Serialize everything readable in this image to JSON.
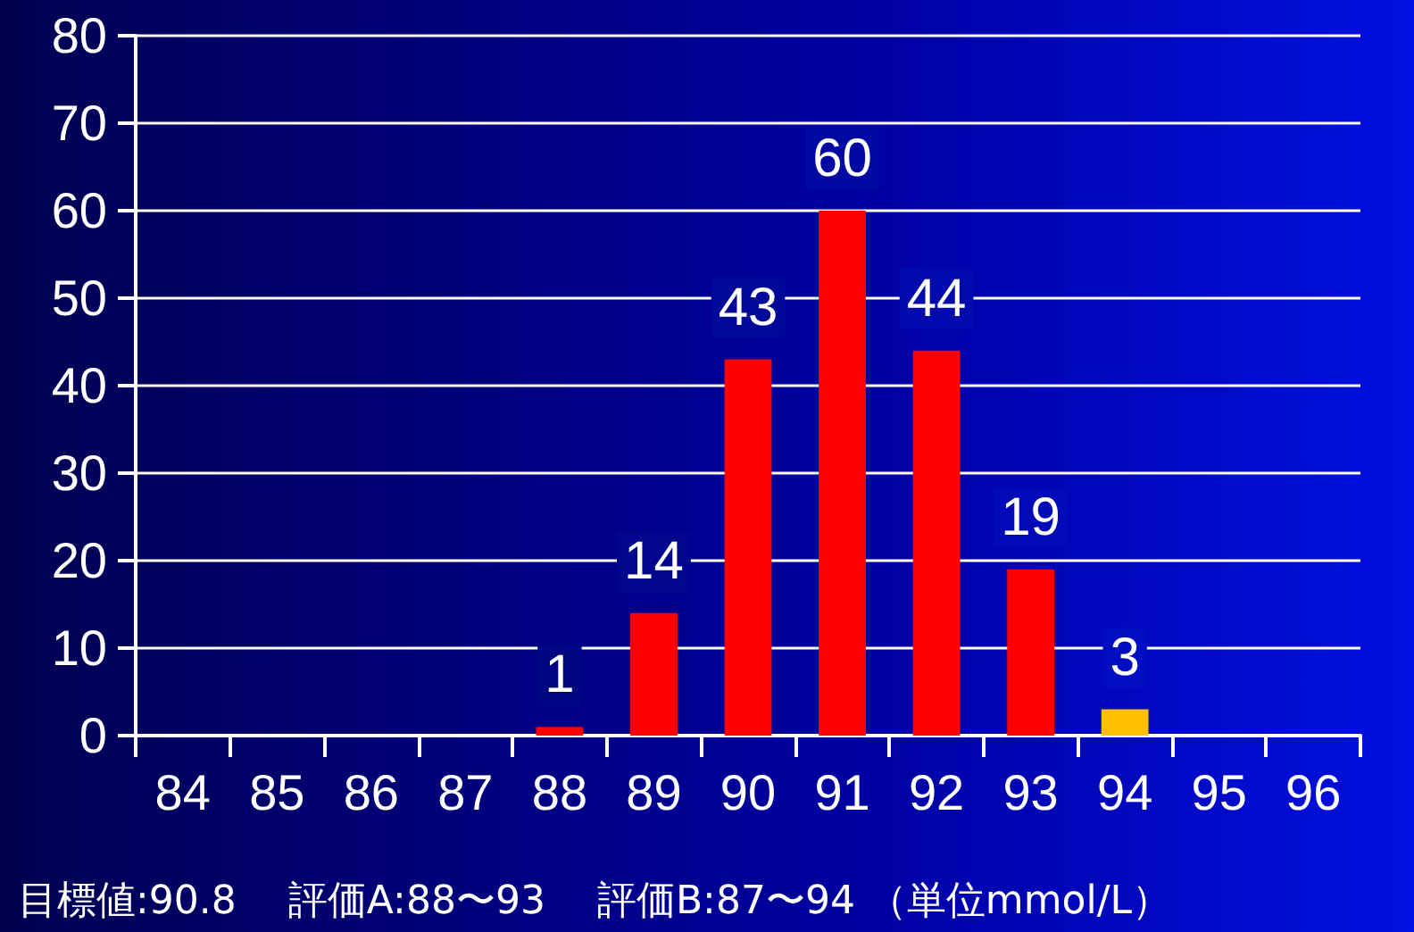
{
  "chart_data": {
    "type": "bar",
    "categories": [
      "84",
      "85",
      "86",
      "87",
      "88",
      "89",
      "90",
      "91",
      "92",
      "93",
      "94",
      "95",
      "96"
    ],
    "values": [
      0,
      0,
      0,
      0,
      1,
      14,
      43,
      60,
      44,
      19,
      3,
      0,
      0
    ],
    "value_labels": [
      null,
      null,
      null,
      null,
      "1",
      "14",
      "43",
      "60",
      "44",
      "19",
      "3",
      null,
      null
    ],
    "colors": [
      "#ff0000",
      "#ff0000",
      "#ff0000",
      "#ff0000",
      "#ff0000",
      "#ff0000",
      "#ff0000",
      "#ff0000",
      "#ff0000",
      "#ff0000",
      "#ffc000",
      "#ff0000",
      "#ff0000"
    ],
    "ylim": [
      0,
      80
    ],
    "yticks": [
      0,
      10,
      20,
      30,
      40,
      50,
      60,
      70,
      80
    ],
    "grid": "y",
    "annotations": [
      "目標値:90.8　 評価A:88〜93　 評価B:87〜94 （単位mmol/L）"
    ]
  }
}
